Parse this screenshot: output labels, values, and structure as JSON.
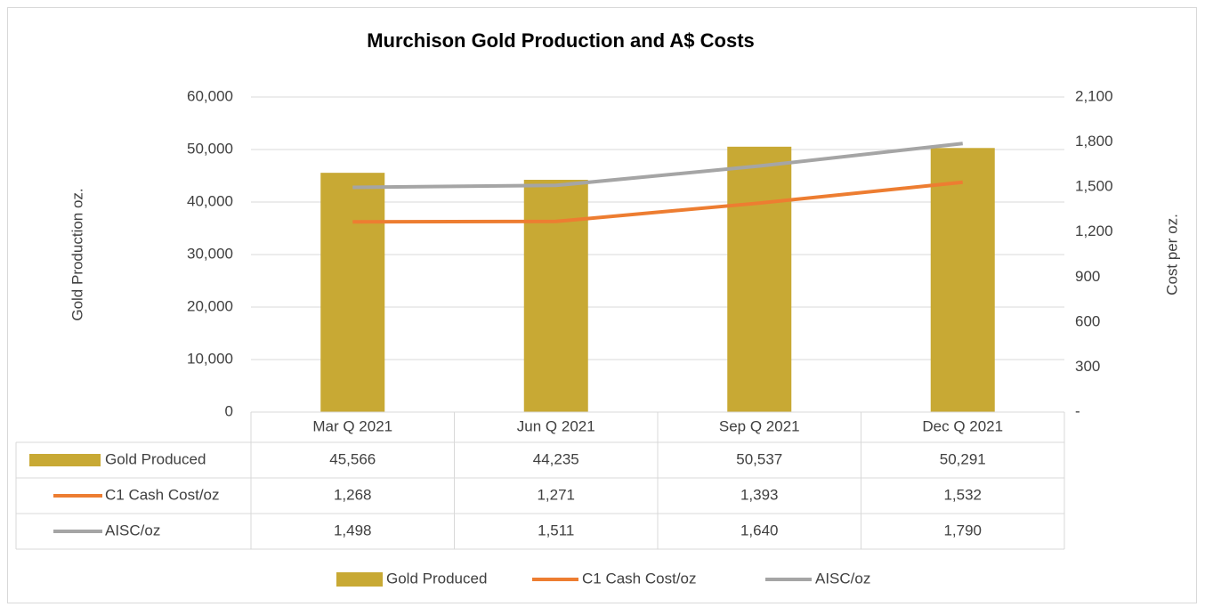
{
  "chart_data": {
    "type": "bar",
    "title": "Murchison Gold Production and A$ Costs",
    "y_label": "Gold Production oz.",
    "y2_label": "Cost per oz.",
    "categories": [
      "Mar Q 2021",
      "Jun Q 2021",
      "Sep Q 2021",
      "Dec Q 2021"
    ],
    "series": [
      {
        "name": "Gold Produced",
        "type": "bar",
        "color": "#c8a934",
        "values": [
          45566,
          44235,
          50537,
          50291
        ],
        "value_labels": [
          "45,566",
          "44,235",
          "50,537",
          "50,291"
        ]
      },
      {
        "name": "C1 Cash Cost/oz",
        "type": "line",
        "axis": "y2",
        "color": "#ed7d31",
        "values": [
          1268,
          1271,
          1393,
          1532
        ],
        "value_labels": [
          "1,268",
          "1,271",
          "1,393",
          "1,532"
        ]
      },
      {
        "name": "AISC/oz",
        "type": "line",
        "axis": "y2",
        "color": "#a5a5a5",
        "values": [
          1498,
          1511,
          1640,
          1790
        ],
        "value_labels": [
          "1,498",
          "1,511",
          "1,640",
          "1,790"
        ]
      }
    ],
    "ylim": [
      0,
      60000
    ],
    "yticks": [
      0,
      {
        "value": 10000,
        "label": "10,000"
      },
      {
        "value": 20000,
        "label": "20,000"
      },
      {
        "value": 30000,
        "label": "30,000"
      },
      {
        "value": 40000,
        "label": "40,000"
      },
      {
        "value": 50000,
        "label": "50,000"
      },
      {
        "value": 60000,
        "label": "60,000"
      }
    ],
    "y2lim": [
      0,
      2100
    ],
    "y2ticks": [
      {
        "value": 0,
        "label": "-"
      },
      300,
      600,
      900,
      {
        "value": 1200,
        "label": "1,200"
      },
      {
        "value": 1500,
        "label": "1,500"
      },
      {
        "value": 1800,
        "label": "1,800"
      },
      {
        "value": 2100,
        "label": "2,100"
      }
    ],
    "grid": true,
    "legend": "bottom",
    "data_table": true
  }
}
